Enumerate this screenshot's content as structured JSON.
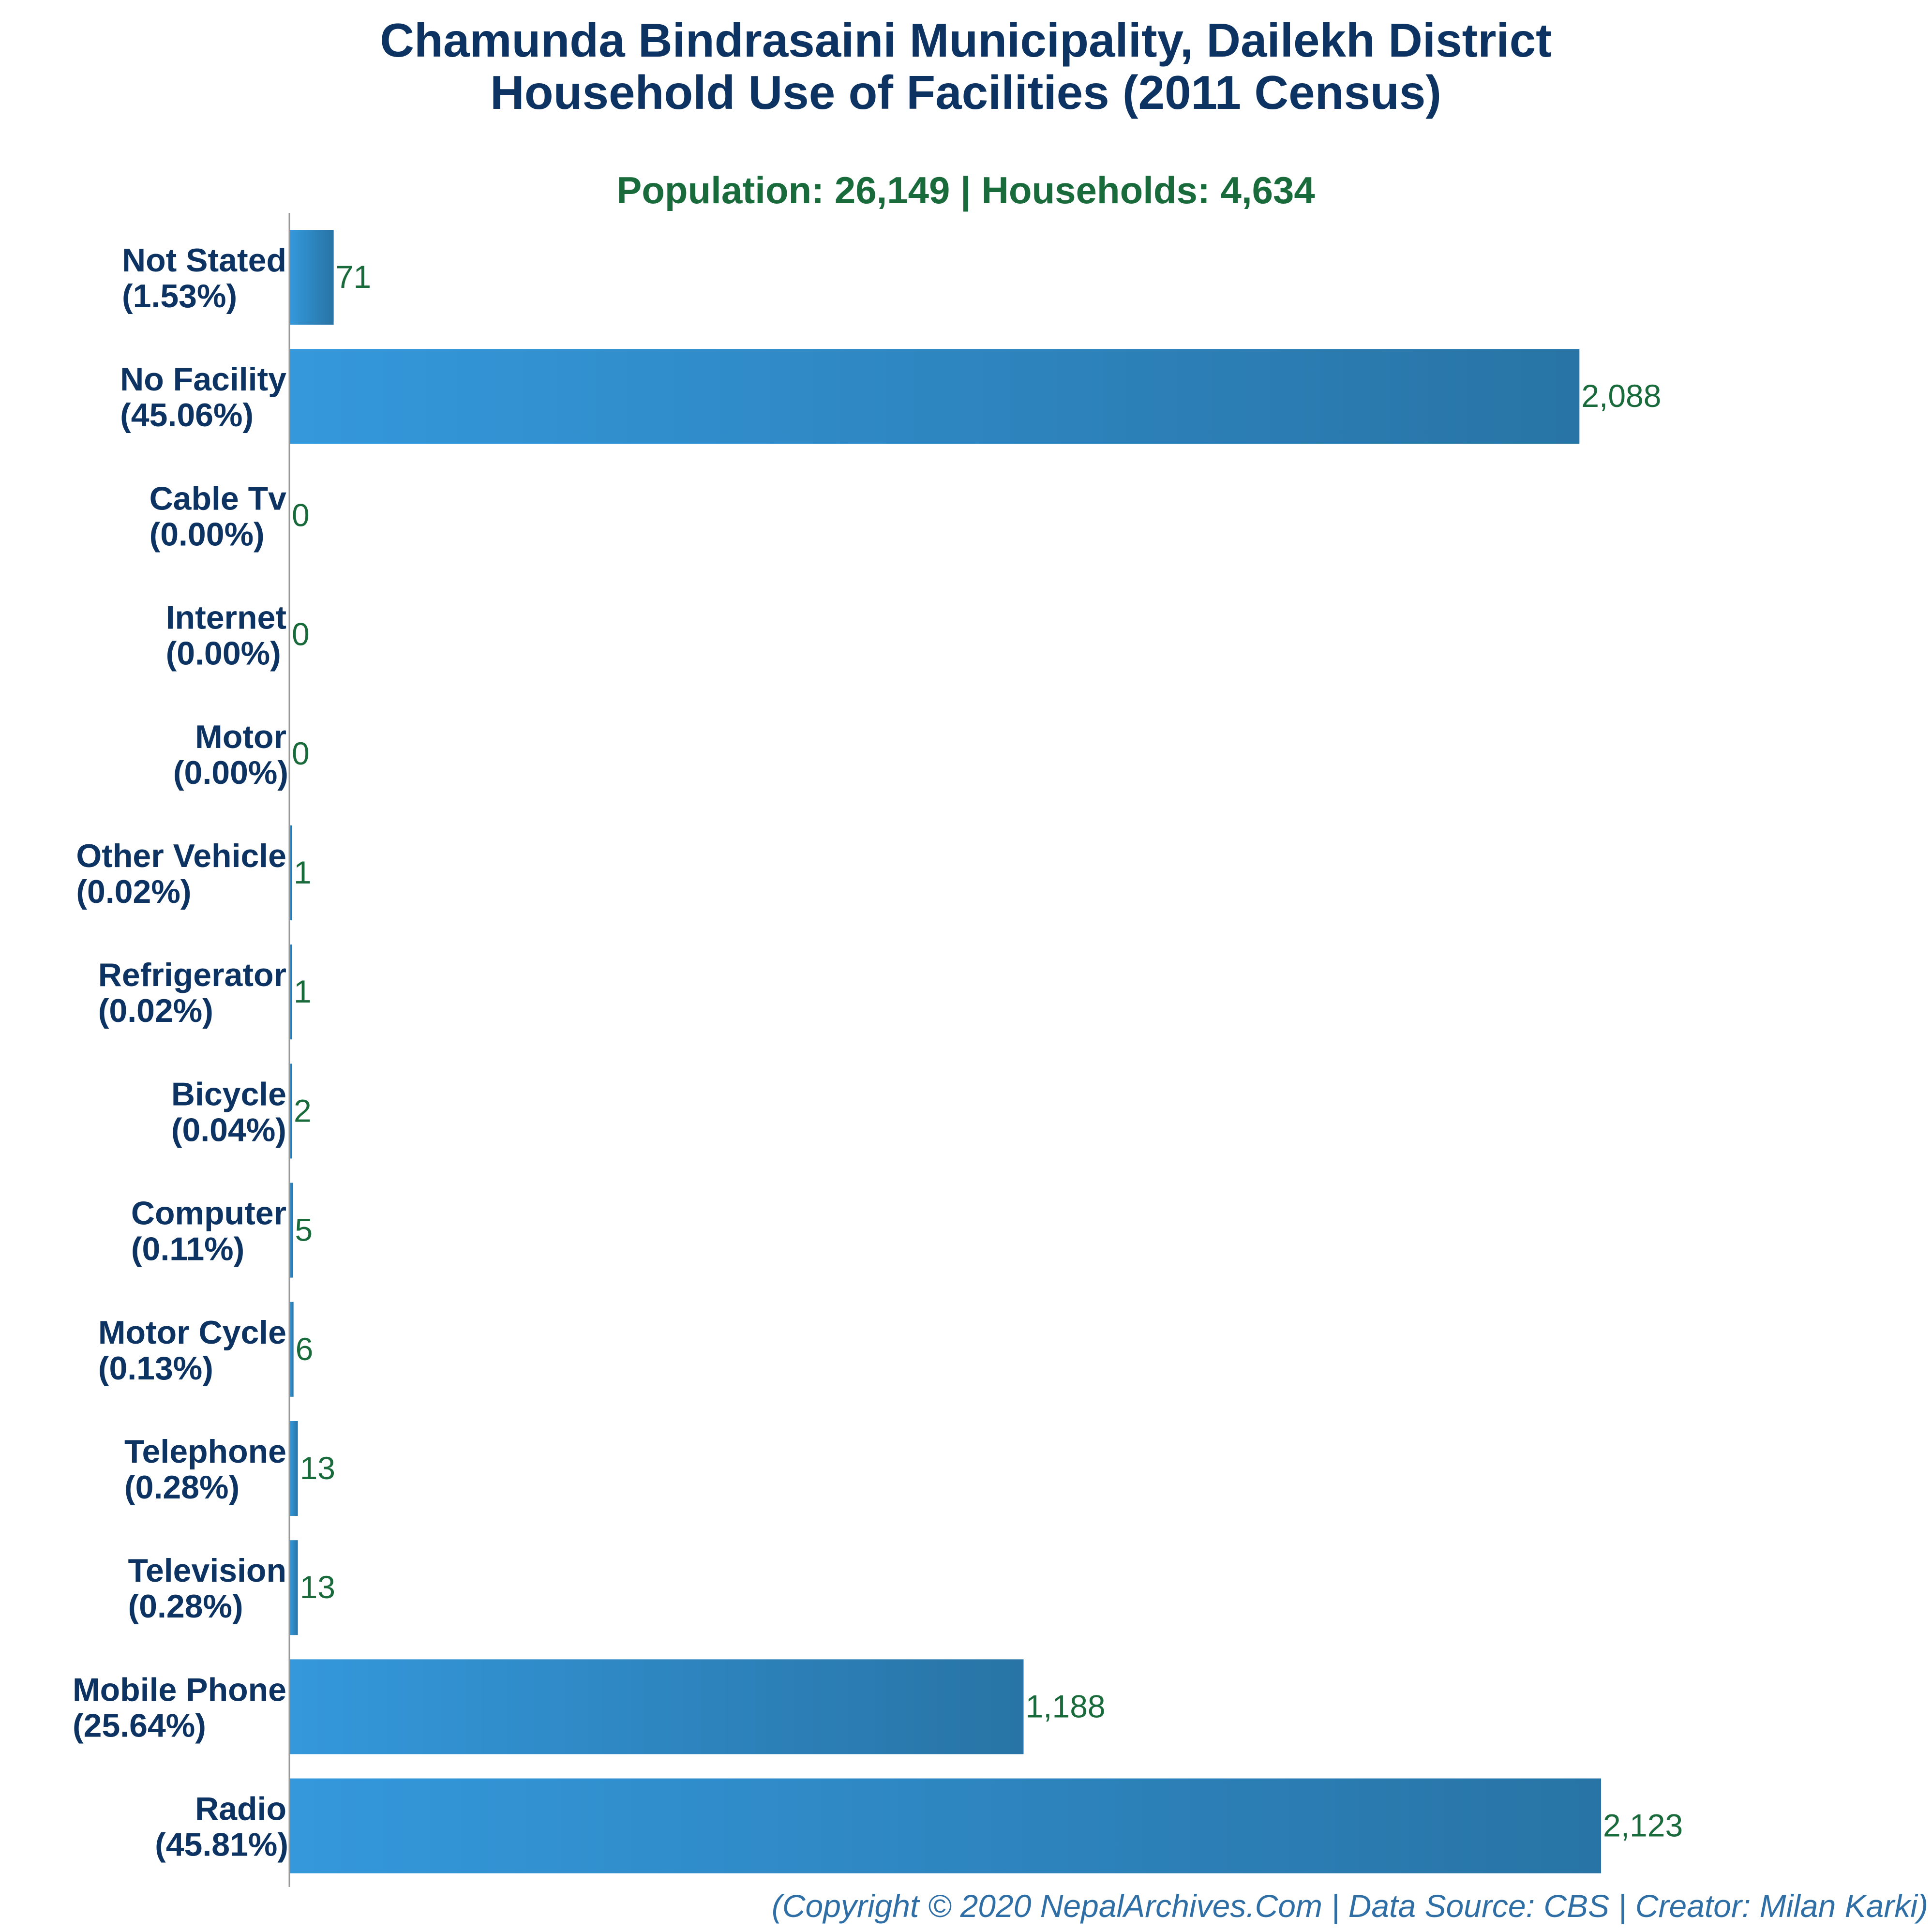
{
  "chart_data": {
    "type": "bar",
    "orientation": "horizontal",
    "title_lines": [
      "Chamunda Bindrasaini Municipality, Dailekh District",
      "Household Use of Facilities (2011 Census)"
    ],
    "subtitle": "Population: 26,149 | Households: 4,634",
    "categories": [
      {
        "name": "Not Stated",
        "pct": "(1.53%)"
      },
      {
        "name": "No Facility",
        "pct": "(45.06%)"
      },
      {
        "name": "Cable Tv",
        "pct": "(0.00%)"
      },
      {
        "name": "Internet",
        "pct": "(0.00%)"
      },
      {
        "name": "Motor",
        "pct": "(0.00%)"
      },
      {
        "name": "Other Vehicle",
        "pct": "(0.02%)"
      },
      {
        "name": "Refrigerator",
        "pct": "(0.02%)"
      },
      {
        "name": "Bicycle",
        "pct": "(0.04%)"
      },
      {
        "name": "Computer",
        "pct": "(0.11%)"
      },
      {
        "name": "Motor Cycle",
        "pct": "(0.13%)"
      },
      {
        "name": "Telephone",
        "pct": "(0.28%)"
      },
      {
        "name": "Television",
        "pct": "(0.28%)"
      },
      {
        "name": "Mobile Phone",
        "pct": "(25.64%)"
      },
      {
        "name": "Radio",
        "pct": "(45.81%)"
      }
    ],
    "values": [
      71,
      2088,
      0,
      0,
      0,
      1,
      1,
      2,
      5,
      6,
      13,
      13,
      1188,
      2123
    ],
    "value_labels": [
      "71",
      "2,088",
      "0",
      "0",
      "0",
      "1",
      "1",
      "2",
      "5",
      "6",
      "13",
      "13",
      "1,188",
      "2,123"
    ],
    "xlim": [
      0,
      2123
    ],
    "grid": false,
    "legend": "none",
    "colors": {
      "bar_start": "#3498db",
      "bar_end": "#2874a6",
      "title": "#0d3363",
      "subtitle": "#1a6b3c",
      "value_label": "#1a6b3c",
      "footer": "#2f6fa5",
      "axis": "#9a9a9a"
    },
    "footer": "(Copyright © 2020 NepalArchives.Com | Data Source: CBS | Creator: Milan Karki)"
  }
}
